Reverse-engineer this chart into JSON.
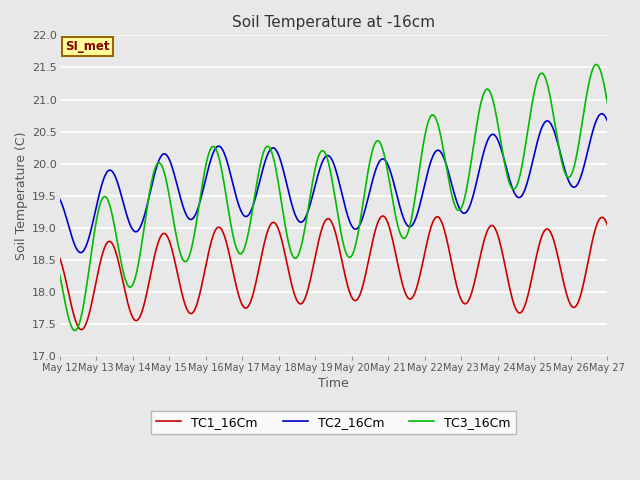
{
  "title": "Soil Temperature at -16cm",
  "xlabel": "Time",
  "ylabel": "Soil Temperature (C)",
  "ylim": [
    17.0,
    22.0
  ],
  "yticks": [
    17.0,
    17.5,
    18.0,
    18.5,
    19.0,
    19.5,
    20.0,
    20.5,
    21.0,
    21.5,
    22.0
  ],
  "x_tick_labels": [
    "May 12",
    "May 13",
    "May 14",
    "May 15",
    "May 16",
    "May 17",
    "May 18",
    "May 19",
    "May 20",
    "May 21",
    "May 22",
    "May 23",
    "May 24",
    "May 25",
    "May 26",
    "May 27"
  ],
  "legend_labels": [
    "TC1_16Cm",
    "TC2_16Cm",
    "TC3_16Cm"
  ],
  "colors": [
    "#cc0000",
    "#0000cc",
    "#00bb00"
  ],
  "linewidth": 1.2,
  "bg_color": "#e8e8e8",
  "annotation_text": "SI_met",
  "annotation_bg": "#ffff99",
  "annotation_border": "#996600"
}
